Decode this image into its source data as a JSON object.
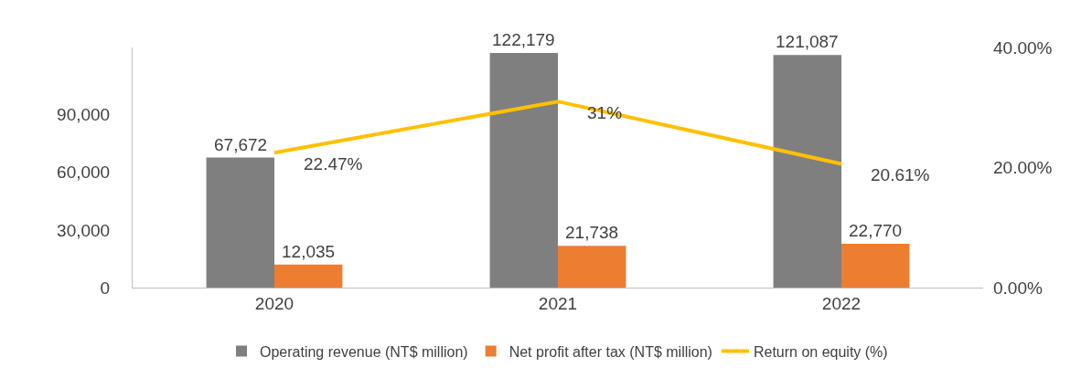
{
  "chart_data": {
    "type": "bar",
    "categories": [
      "2020",
      "2021",
      "2022"
    ],
    "series": [
      {
        "name": "Operating revenue (NT$ million)",
        "color": "#7f7f7f",
        "values": [
          67672,
          122179,
          121087
        ],
        "value_labels": [
          "67,672",
          "122,179",
          "121,087"
        ]
      },
      {
        "name": "Net profit after tax (NT$ million)",
        "color": "#ed7d31",
        "values": [
          12035,
          21738,
          22770
        ],
        "value_labels": [
          "12,035",
          "21,738",
          "22,770"
        ]
      },
      {
        "name": "Return on equity (%)",
        "type": "line",
        "axis": "y2",
        "color": "#ffc000",
        "values": [
          22.47,
          31,
          20.61
        ],
        "value_labels": [
          "22.47%",
          "31%",
          "20.61%"
        ]
      }
    ],
    "ylim": [
      0,
      125000
    ],
    "yticks": [
      {
        "value": 0,
        "label": "0"
      },
      {
        "value": 30000,
        "label": "30,000"
      },
      {
        "value": 60000,
        "label": "60,000"
      },
      {
        "value": 90000,
        "label": "90,000"
      }
    ],
    "y2lim": [
      0,
      40
    ],
    "y2ticks": [
      {
        "value": 0,
        "label": "0.00%"
      },
      {
        "value": 20,
        "label": "20.00%"
      },
      {
        "value": 40,
        "label": "40.00%"
      }
    ],
    "grid": false,
    "legend": "bottom",
    "marker": "none",
    "line_style": "solid"
  }
}
